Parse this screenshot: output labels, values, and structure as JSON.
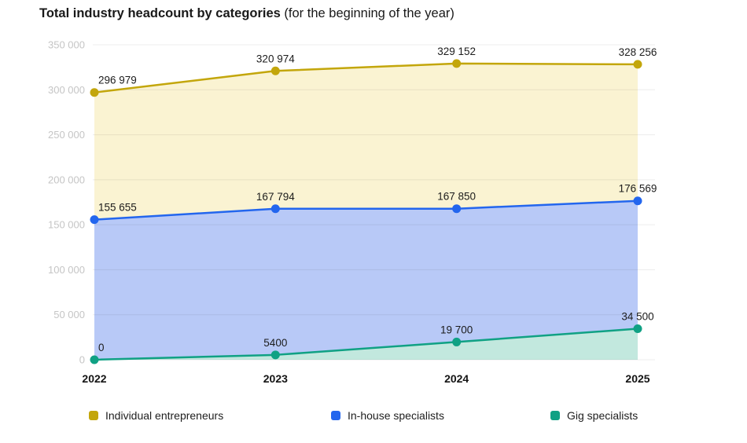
{
  "title": {
    "bold": "Total industry headcount by categories",
    "regular": " (for the beginning of the year)"
  },
  "chart_data": {
    "type": "area",
    "categories": [
      "2022",
      "2023",
      "2024",
      "2025"
    ],
    "series": [
      {
        "name": "Individual entrepreneurs",
        "color": "#c3a60b",
        "fill": "#faf3d2",
        "values": [
          296979,
          320974,
          329152,
          328256
        ],
        "labels": [
          "296 979",
          "320 974",
          "329 152",
          "328 256"
        ]
      },
      {
        "name": "In-house specialists",
        "color": "#2366ee",
        "fill": "#b8c9f7",
        "values": [
          155655,
          167794,
          167850,
          176569
        ],
        "labels": [
          "155 655",
          "167 794",
          "167 850",
          "176 569"
        ]
      },
      {
        "name": "Gig specialists",
        "color": "#10a184",
        "fill": "#c2e8de",
        "values": [
          0,
          5400,
          19700,
          34500
        ],
        "labels": [
          "0",
          "5400",
          "19 700",
          "34 500"
        ]
      }
    ],
    "ylim": [
      0,
      350000
    ],
    "ytick_step": 50000,
    "ytick_labels": [
      "0",
      "50 000",
      "100 000",
      "150 000",
      "200 000",
      "250 000",
      "300 000",
      "350 000"
    ],
    "grid": true,
    "legend_position": "bottom",
    "background": "#ffffff"
  }
}
